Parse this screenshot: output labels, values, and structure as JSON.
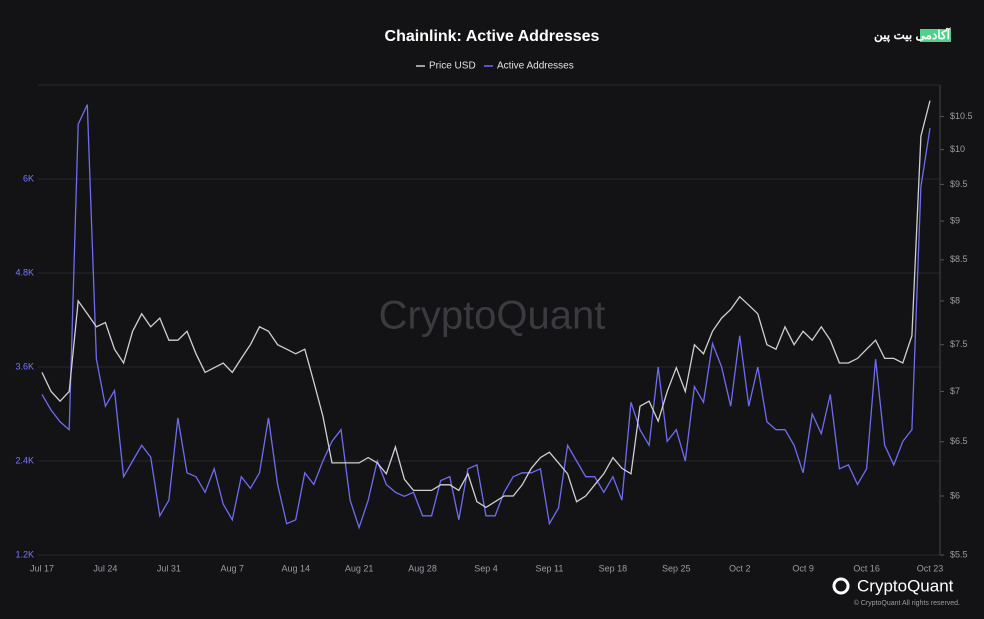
{
  "chart_data": {
    "type": "line",
    "title": "Chainlink: Active Addresses",
    "logo_text": "آکادمی بیت پین",
    "watermark": "CryptoQuant",
    "brand": "CryptoQuant",
    "copyright": "© CryptoQuant All rights reserved.",
    "categories": [
      "Jul 17",
      null,
      null,
      null,
      null,
      null,
      null,
      "Jul 24",
      null,
      null,
      null,
      null,
      null,
      null,
      "Jul 31",
      null,
      null,
      null,
      null,
      null,
      null,
      "Aug 7",
      null,
      null,
      null,
      null,
      null,
      null,
      "Aug 14",
      null,
      null,
      null,
      null,
      null,
      null,
      "Aug 21",
      null,
      null,
      null,
      null,
      null,
      null,
      "Aug 28",
      null,
      null,
      null,
      null,
      null,
      null,
      "Sep 4",
      null,
      null,
      null,
      null,
      null,
      null,
      "Sep 11",
      null,
      null,
      null,
      null,
      null,
      null,
      "Sep 18",
      null,
      null,
      null,
      null,
      null,
      null,
      "Sep 25",
      null,
      null,
      null,
      null,
      null,
      null,
      "Oct 2",
      null,
      null,
      null,
      null,
      null,
      null,
      "Oct 9",
      null,
      null,
      null,
      null,
      null,
      null,
      "Oct 16",
      null,
      null,
      null,
      null,
      null,
      null,
      "Oct 23"
    ],
    "series": [
      {
        "name": "Price USD",
        "color": "#cfcfd4",
        "axis": "y2",
        "values": [
          7.2,
          7.0,
          6.9,
          7.0,
          8.0,
          7.85,
          7.7,
          7.75,
          7.45,
          7.3,
          7.65,
          7.85,
          7.7,
          7.8,
          7.55,
          7.55,
          7.65,
          7.4,
          7.2,
          7.25,
          7.3,
          7.2,
          7.35,
          7.5,
          7.7,
          7.65,
          7.5,
          7.45,
          7.4,
          7.45,
          7.1,
          6.75,
          6.3,
          6.3,
          6.3,
          6.3,
          6.35,
          6.3,
          6.2,
          6.45,
          6.15,
          6.05,
          6.05,
          6.05,
          6.1,
          6.1,
          6.05,
          6.2,
          5.95,
          5.9,
          5.95,
          6.0,
          6.0,
          6.1,
          6.25,
          6.35,
          6.4,
          6.3,
          6.2,
          5.95,
          6.0,
          6.1,
          6.2,
          6.35,
          6.25,
          6.2,
          6.85,
          6.9,
          6.7,
          7.0,
          7.25,
          7.0,
          7.5,
          7.4,
          7.65,
          7.8,
          7.9,
          8.05,
          7.95,
          7.85,
          7.5,
          7.45,
          7.7,
          7.5,
          7.65,
          7.55,
          7.7,
          7.55,
          7.3,
          7.3,
          7.35,
          7.45,
          7.55,
          7.35,
          7.35,
          7.3,
          7.6,
          10.2,
          10.75
        ]
      },
      {
        "name": "Active Addresses",
        "color": "#6f6cf0",
        "values": [
          3250,
          3050,
          2900,
          2800,
          6700,
          6950,
          3700,
          3100,
          3300,
          2200,
          2400,
          2600,
          2450,
          1700,
          1900,
          2950,
          2250,
          2200,
          2000,
          2300,
          1850,
          1650,
          2200,
          2050,
          2250,
          2950,
          2100,
          1600,
          1650,
          2250,
          2100,
          2400,
          2650,
          2800,
          1900,
          1550,
          1900,
          2400,
          2100,
          2000,
          1950,
          2000,
          1700,
          1700,
          2150,
          2200,
          1650,
          2300,
          2350,
          1700,
          1700,
          2000,
          2200,
          2250,
          2250,
          2300,
          1600,
          1800,
          2600,
          2400,
          2200,
          2200,
          2000,
          2200,
          1900,
          3150,
          2800,
          2600,
          3600,
          2650,
          2800,
          2400,
          3350,
          3150,
          3900,
          3600,
          3100,
          4000,
          3100,
          3600,
          2900,
          2800,
          2800,
          2600,
          2250,
          3000,
          2750,
          3250,
          2300,
          2350,
          2100,
          2300,
          3700,
          2600,
          2350,
          2650,
          2800,
          5900,
          6650
        ]
      }
    ],
    "ylim": [
      1200,
      7200
    ],
    "yticks": [
      {
        "value": 1200,
        "label": "1.2K"
      },
      {
        "value": 2400,
        "label": "2.4K"
      },
      {
        "value": 3600,
        "label": "3.6K"
      },
      {
        "value": 4800,
        "label": "4.8K"
      },
      {
        "value": 6000,
        "label": "6K"
      }
    ],
    "y2lim": [
      5.5,
      11.0
    ],
    "y2_scale": "log",
    "y2ticks": [
      {
        "value": 5.5,
        "label": "$5.5"
      },
      {
        "value": 6,
        "label": "$6"
      },
      {
        "value": 6.5,
        "label": "$6.5"
      },
      {
        "value": 7,
        "label": "$7"
      },
      {
        "value": 7.5,
        "label": "$7.5"
      },
      {
        "value": 8,
        "label": "$8"
      },
      {
        "value": 8.5,
        "label": "$8.5"
      },
      {
        "value": 9,
        "label": "$9"
      },
      {
        "value": 9.5,
        "label": "$9.5"
      },
      {
        "value": 10,
        "label": "$10"
      },
      {
        "value": 10.5,
        "label": "$10.5"
      }
    ],
    "grid": true
  }
}
